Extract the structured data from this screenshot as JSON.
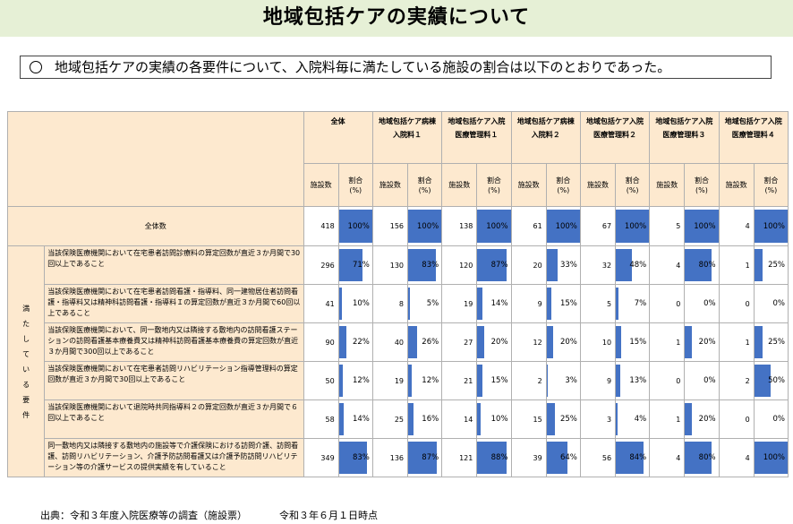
{
  "title": "地域包括ケアの実績について",
  "summary": "地域包括ケアの実績の各要件について、入院料毎に満たしている施設の割合は以下のとおりであった。",
  "bar_color": "#4472c4",
  "header_color": "#fde9cf",
  "chart_data": {
    "type": "table",
    "groups": [
      {
        "line1": "全体",
        "line2": ""
      },
      {
        "line1": "地域包括ケア病棟",
        "line2": "入院料１"
      },
      {
        "line1": "地域包括ケア入院",
        "line2": "医療管理料１"
      },
      {
        "line1": "地域包括ケア病棟",
        "line2": "入院料２"
      },
      {
        "line1": "地域包括ケア入院",
        "line2": "医療管理料２"
      },
      {
        "line1": "地域包括ケア入院",
        "line2": "医療管理料３"
      },
      {
        "line1": "地域包括ケア入院",
        "line2": "医療管理料４"
      }
    ],
    "sub_headers": {
      "count": "施設数",
      "ratio_1": "割合",
      "ratio_2": "(%)"
    },
    "total_row": {
      "label": "全体数",
      "counts": [
        418,
        156,
        138,
        61,
        67,
        5,
        4
      ],
      "percents": [
        100,
        100,
        100,
        100,
        100,
        100,
        100
      ],
      "labels": [
        "100%",
        "100%",
        "100%",
        "100%",
        "100%",
        "100%",
        "100%"
      ]
    },
    "side_label": [
      "満",
      "た",
      "し",
      "て",
      "い",
      "る",
      "要",
      "件"
    ],
    "rows": [
      {
        "requirement": "当該保険医療機関において在宅患者訪問診療料の算定回数が直近３か月間で30回以上であること",
        "counts": [
          296,
          130,
          120,
          20,
          32,
          4,
          1
        ],
        "percents": [
          71,
          83,
          87,
          33,
          48,
          80,
          25
        ],
        "labels": [
          "71%",
          "83%",
          "87%",
          "33%",
          "48%",
          "80%",
          "25%"
        ]
      },
      {
        "requirement": "当該保険医療機関において在宅患者訪問看護・指導料、同一建物居住者訪問看護・指導料又は精神科訪問看護・指導料Ｉの算定回数が直近３か月間で60回以上であること",
        "counts": [
          41,
          8,
          19,
          9,
          5,
          0,
          0
        ],
        "percents": [
          10,
          5,
          14,
          15,
          7,
          0,
          0
        ],
        "labels": [
          "10%",
          "5%",
          "14%",
          "15%",
          "7%",
          "0%",
          "0%"
        ]
      },
      {
        "requirement": "当該保険医療機関において、同一敷地内又は隣接する敷地内の訪問看護ステーションの訪問看護基本療養費又は精神科訪問看護基本療養費の算定回数が直近３か月間で300回以上であること",
        "counts": [
          90,
          40,
          27,
          12,
          10,
          1,
          1
        ],
        "percents": [
          22,
          26,
          20,
          20,
          15,
          20,
          25
        ],
        "labels": [
          "22%",
          "26%",
          "20%",
          "20%",
          "15%",
          "20%",
          "25%"
        ]
      },
      {
        "requirement": "当該保険医療機関において在宅患者訪問リハビリテーション指導管理料の算定回数が直近３か月間で30回以上であること",
        "counts": [
          50,
          19,
          21,
          2,
          9,
          0,
          2
        ],
        "percents": [
          12,
          12,
          15,
          3,
          13,
          0,
          50
        ],
        "labels": [
          "12%",
          "12%",
          "15%",
          "3%",
          "13%",
          "0%",
          "50%"
        ]
      },
      {
        "requirement": "当該保険医療機関において退院時共同指導料２の算定回数が直近３か月間で６回以上であること",
        "counts": [
          58,
          25,
          14,
          15,
          3,
          1,
          0
        ],
        "percents": [
          14,
          16,
          10,
          25,
          4,
          20,
          0
        ],
        "labels": [
          "14%",
          "16%",
          "10%",
          "25%",
          "4%",
          "20%",
          "0%"
        ]
      },
      {
        "requirement": "同一敷地内又は隣接する敷地内の施設等で介護保険における訪問介護、訪問看護、訪問リハビリテーション、介護予防訪問看護又は介護予防訪問リハビリテーション等の介護サービスの提供実績を有していること",
        "counts": [
          349,
          136,
          121,
          39,
          56,
          4,
          4
        ],
        "percents": [
          83,
          87,
          88,
          64,
          84,
          80,
          100
        ],
        "labels": [
          "83%",
          "87%",
          "88%",
          "64%",
          "84%",
          "80%",
          "100%"
        ]
      }
    ]
  },
  "source": "出典：令和３年度入院医療等の調査（施設票）",
  "date_note": "令和３年６月１日時点"
}
